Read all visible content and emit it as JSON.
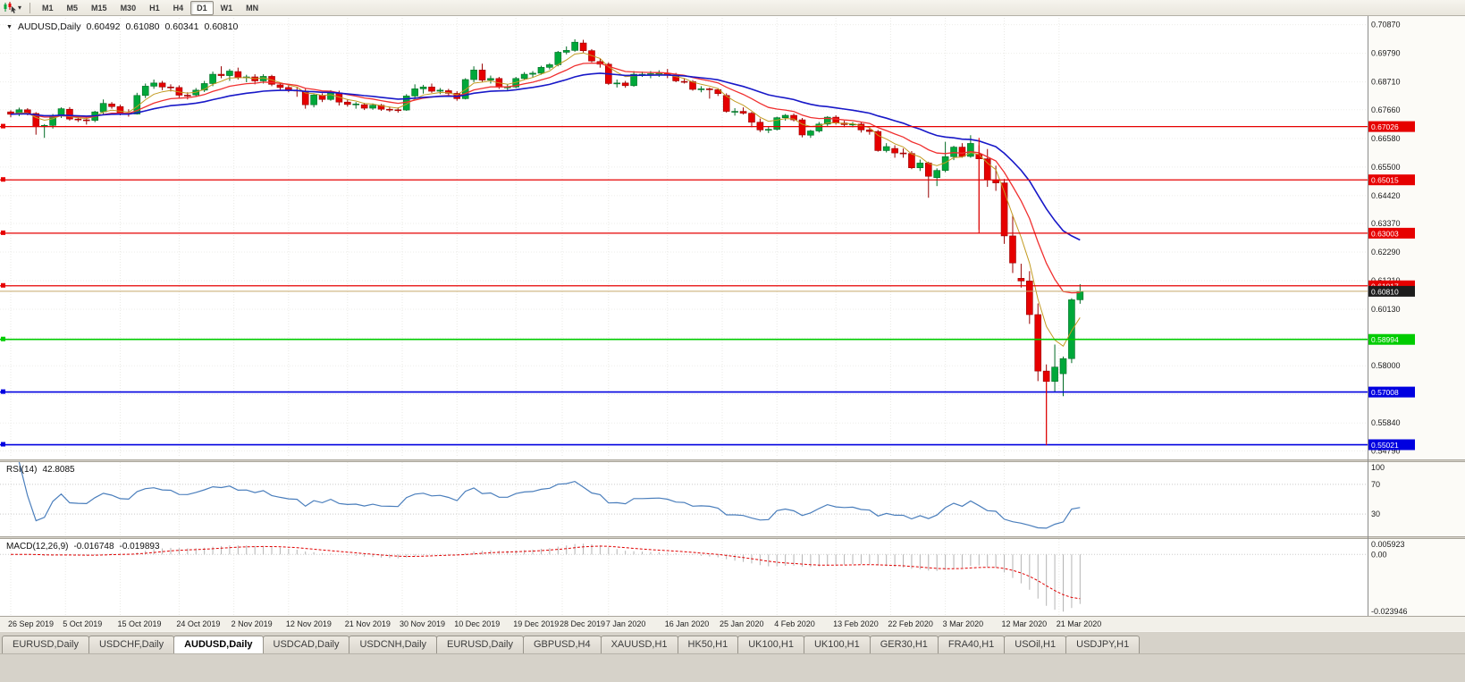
{
  "toolbar": {
    "timeframes": [
      "M1",
      "M5",
      "M15",
      "M30",
      "H1",
      "H4",
      "D1",
      "W1",
      "MN"
    ],
    "active_timeframe": "D1"
  },
  "symbol": {
    "expand_icon": "▼",
    "name": "AUDUSD,Daily",
    "open": "0.60492",
    "high": "0.61080",
    "low": "0.60341",
    "close": "0.60810"
  },
  "indicators": {
    "rsi": {
      "label": "RSI(14)",
      "value": "42.8085"
    },
    "macd": {
      "label": "MACD(12,26,9)",
      "value": "-0.016748",
      "signal": "-0.019893"
    }
  },
  "tabs": {
    "items": [
      "EURUSD,Daily",
      "USDCHF,Daily",
      "AUDUSD,Daily",
      "USDCAD,Daily",
      "USDCNH,Daily",
      "EURUSD,Daily",
      "GBPUSD,H4",
      "XAUUSD,H1",
      "HK50,H1",
      "UK100,H1",
      "UK100,H1",
      "GER30,H1",
      "FRA40,H1",
      "USOil,H1",
      "USDJPY,H1"
    ],
    "active_index": 2
  },
  "chart_data": {
    "type": "candlestick",
    "symbol": "AUDUSD",
    "timeframe": "Daily",
    "current_bar": {
      "open": 0.60492,
      "high": 0.6108,
      "low": 0.60341,
      "close": 0.6081
    },
    "ylim": [
      0.546,
      0.7106
    ],
    "y_ticks": [
      "0.70870",
      "0.69790",
      "0.68710",
      "0.67660",
      "0.66580",
      "0.65500",
      "0.64420",
      "0.63370",
      "0.62290",
      "0.61210",
      "0.60130",
      "0.59050",
      "0.58000",
      "0.56920",
      "0.55840",
      "0.54790"
    ],
    "x_ticks": [
      {
        "label": "26 Sep 2019",
        "index": 0
      },
      {
        "label": "5 Oct 2019",
        "index": 6.5
      },
      {
        "label": "15 Oct 2019",
        "index": 13
      },
      {
        "label": "24 Oct 2019",
        "index": 20
      },
      {
        "label": "2 Nov 2019",
        "index": 26.5
      },
      {
        "label": "12 Nov 2019",
        "index": 33
      },
      {
        "label": "21 Nov 2019",
        "index": 40
      },
      {
        "label": "30 Nov 2019",
        "index": 46.5
      },
      {
        "label": "10 Dec 2019",
        "index": 53
      },
      {
        "label": "19 Dec 2019",
        "index": 60
      },
      {
        "label": "28 Dec 2019",
        "index": 65.5
      },
      {
        "label": "7 Jan 2020",
        "index": 71
      },
      {
        "label": "16 Jan 2020",
        "index": 78
      },
      {
        "label": "25 Jan 2020",
        "index": 84.5
      },
      {
        "label": "4 Feb 2020",
        "index": 91
      },
      {
        "label": "13 Feb 2020",
        "index": 98
      },
      {
        "label": "22 Feb 2020",
        "index": 104.5
      },
      {
        "label": "3 Mar 2020",
        "index": 111
      },
      {
        "label": "12 Mar 2020",
        "index": 118
      },
      {
        "label": "21 Mar 2020",
        "index": 124.5
      }
    ],
    "colors": {
      "up_fill": "#00a83a",
      "up_border": "#006b24",
      "down_fill": "#e60000",
      "down_border": "#970000"
    },
    "moving_averages": [
      {
        "period": 5,
        "color": "#c39b22",
        "width": 1
      },
      {
        "period": 12,
        "color": "#f03030",
        "width": 1.3
      },
      {
        "period": 26,
        "color": "#1818c8",
        "width": 1.6
      }
    ],
    "horizontal_lines": [
      {
        "price": 0.67026,
        "color": "#e60000",
        "width": 1.2,
        "tag": "0.67026"
      },
      {
        "price": 0.65015,
        "color": "#e60000",
        "width": 1.2,
        "tag": "0.65015"
      },
      {
        "price": 0.63003,
        "color": "#e60000",
        "width": 1.2,
        "tag": "0.63003"
      },
      {
        "price": 0.61017,
        "color": "#e60000",
        "width": 1.2,
        "tag": "0.61017"
      },
      {
        "price": 0.58994,
        "color": "#00cc00",
        "width": 1.6,
        "tag": "0.58994"
      },
      {
        "price": 0.57008,
        "color": "#0000e0",
        "width": 1.6,
        "tag": "0.57008"
      },
      {
        "price": 0.55021,
        "color": "#0000e0",
        "width": 1.6,
        "tag": "0.55021"
      }
    ],
    "current_price_line": {
      "price": 0.6081,
      "tag": "0.60810",
      "line_color": "#c8a96a",
      "tag_color": "#1c1c1c"
    },
    "vertical_segments": [
      {
        "index": 115,
        "from": 0.666,
        "to": 0.63,
        "color": "#e60000"
      },
      {
        "index": 123,
        "from": 0.577,
        "to": 0.55,
        "color": "#e60000"
      }
    ],
    "rsi": {
      "period": 14,
      "last": 42.8085,
      "levels": [
        70,
        30
      ],
      "axis_labels": [
        "100",
        "70",
        "30"
      ],
      "ylim": [
        0,
        100
      ],
      "color": "#4a7ebc"
    },
    "macd": {
      "fast": 12,
      "slow": 26,
      "signal": 9,
      "last_main": -0.016748,
      "last_signal": -0.019893,
      "axis_labels": [
        "0.005923",
        "0.00",
        "-0.023946"
      ],
      "ylim": [
        -0.0246,
        0.0062
      ],
      "hist_color": "#b4b4b4",
      "signal_color": "#e00000"
    },
    "ohlc": [
      [
        "2019-09-26",
        0.6758,
        0.6764,
        0.6738,
        0.6749
      ],
      [
        "2019-09-27",
        0.6749,
        0.6774,
        0.6742,
        0.6766
      ],
      [
        "2019-09-30",
        0.6766,
        0.6772,
        0.6745,
        0.6752
      ],
      [
        "2019-10-01",
        0.6752,
        0.6757,
        0.6672,
        0.6702
      ],
      [
        "2019-10-02",
        0.6702,
        0.6712,
        0.666,
        0.6707
      ],
      [
        "2019-10-03",
        0.6707,
        0.675,
        0.6695,
        0.6742
      ],
      [
        "2019-10-04",
        0.6742,
        0.6775,
        0.6735,
        0.677
      ],
      [
        "2019-10-07",
        0.6768,
        0.6776,
        0.6725,
        0.6731
      ],
      [
        "2019-10-08",
        0.6731,
        0.6745,
        0.672,
        0.6728
      ],
      [
        "2019-10-09",
        0.6728,
        0.6736,
        0.671,
        0.6726
      ],
      [
        "2019-10-10",
        0.6726,
        0.6762,
        0.6719,
        0.6758
      ],
      [
        "2019-10-11",
        0.6758,
        0.6805,
        0.675,
        0.679
      ],
      [
        "2019-10-14",
        0.6788,
        0.6795,
        0.677,
        0.6778
      ],
      [
        "2019-10-15",
        0.6778,
        0.6785,
        0.6745,
        0.6753
      ],
      [
        "2019-10-16",
        0.6753,
        0.6768,
        0.674,
        0.675
      ],
      [
        "2019-10-17",
        0.675,
        0.683,
        0.6748,
        0.682
      ],
      [
        "2019-10-18",
        0.682,
        0.6865,
        0.681,
        0.6855
      ],
      [
        "2019-10-21",
        0.6855,
        0.688,
        0.6845,
        0.6867
      ],
      [
        "2019-10-22",
        0.6867,
        0.6875,
        0.684,
        0.6852
      ],
      [
        "2019-10-23",
        0.6852,
        0.6862,
        0.6835,
        0.685
      ],
      [
        "2019-10-24",
        0.685,
        0.6858,
        0.681,
        0.6821
      ],
      [
        "2019-10-25",
        0.6821,
        0.6832,
        0.6805,
        0.682
      ],
      [
        "2019-10-28",
        0.6822,
        0.6848,
        0.6815,
        0.684
      ],
      [
        "2019-10-29",
        0.684,
        0.6875,
        0.6833,
        0.6865
      ],
      [
        "2019-10-30",
        0.6865,
        0.691,
        0.6855,
        0.69
      ],
      [
        "2019-10-31",
        0.69,
        0.693,
        0.6885,
        0.6895
      ],
      [
        "2019-11-01",
        0.6895,
        0.692,
        0.6875,
        0.6912
      ],
      [
        "2019-11-04",
        0.691,
        0.6925,
        0.688,
        0.6888
      ],
      [
        "2019-11-05",
        0.6888,
        0.6898,
        0.687,
        0.689
      ],
      [
        "2019-11-06",
        0.689,
        0.69,
        0.6862,
        0.6875
      ],
      [
        "2019-11-07",
        0.6875,
        0.69,
        0.6865,
        0.6892
      ],
      [
        "2019-11-08",
        0.6892,
        0.6898,
        0.6855,
        0.6862
      ],
      [
        "2019-11-11",
        0.686,
        0.687,
        0.684,
        0.685
      ],
      [
        "2019-11-12",
        0.685,
        0.686,
        0.6832,
        0.684
      ],
      [
        "2019-11-13",
        0.684,
        0.6852,
        0.6815,
        0.6837
      ],
      [
        "2019-11-14",
        0.6837,
        0.6845,
        0.677,
        0.6785
      ],
      [
        "2019-11-15",
        0.6785,
        0.6825,
        0.6775,
        0.6822
      ],
      [
        "2019-11-18",
        0.682,
        0.6828,
        0.6795,
        0.6805
      ],
      [
        "2019-11-19",
        0.6805,
        0.684,
        0.68,
        0.683
      ],
      [
        "2019-11-20",
        0.683,
        0.6838,
        0.6782,
        0.6795
      ],
      [
        "2019-11-21",
        0.6795,
        0.6805,
        0.6778,
        0.6786
      ],
      [
        "2019-11-22",
        0.6786,
        0.6795,
        0.677,
        0.6788
      ],
      [
        "2019-11-25",
        0.6785,
        0.6792,
        0.6765,
        0.6772
      ],
      [
        "2019-11-26",
        0.6772,
        0.679,
        0.6766,
        0.6783
      ],
      [
        "2019-11-27",
        0.6783,
        0.6788,
        0.6762,
        0.6768
      ],
      [
        "2019-11-28",
        0.6768,
        0.6778,
        0.6758,
        0.6766
      ],
      [
        "2019-11-29",
        0.6766,
        0.6775,
        0.6755,
        0.6764
      ],
      [
        "2019-12-02",
        0.6765,
        0.6825,
        0.6762,
        0.6818
      ],
      [
        "2019-12-03",
        0.6818,
        0.6862,
        0.681,
        0.6845
      ],
      [
        "2019-12-04",
        0.6845,
        0.686,
        0.6827,
        0.6852
      ],
      [
        "2019-12-05",
        0.6852,
        0.6865,
        0.683,
        0.6836
      ],
      [
        "2019-12-06",
        0.6836,
        0.6848,
        0.6825,
        0.684
      ],
      [
        "2019-12-09",
        0.6838,
        0.6845,
        0.682,
        0.6828
      ],
      [
        "2019-12-10",
        0.6828,
        0.6836,
        0.68,
        0.6808
      ],
      [
        "2019-12-11",
        0.6808,
        0.6885,
        0.6805,
        0.688
      ],
      [
        "2019-12-12",
        0.688,
        0.693,
        0.687,
        0.6916
      ],
      [
        "2019-12-13",
        0.6916,
        0.694,
        0.687,
        0.6878
      ],
      [
        "2019-12-16",
        0.6878,
        0.6895,
        0.6865,
        0.6884
      ],
      [
        "2019-12-17",
        0.6884,
        0.689,
        0.6845,
        0.6852
      ],
      [
        "2019-12-18",
        0.6852,
        0.6862,
        0.6838,
        0.6852
      ],
      [
        "2019-12-19",
        0.6852,
        0.689,
        0.6848,
        0.6884
      ],
      [
        "2019-12-20",
        0.6884,
        0.6908,
        0.6878,
        0.69
      ],
      [
        "2019-12-23",
        0.69,
        0.6912,
        0.6888,
        0.6904
      ],
      [
        "2019-12-24",
        0.6904,
        0.6932,
        0.6898,
        0.6926
      ],
      [
        "2019-12-26",
        0.6926,
        0.6942,
        0.6918,
        0.6936
      ],
      [
        "2019-12-27",
        0.6936,
        0.6988,
        0.693,
        0.6983
      ],
      [
        "2019-12-30",
        0.6983,
        0.7005,
        0.6975,
        0.699
      ],
      [
        "2019-12-31",
        0.699,
        0.7032,
        0.6985,
        0.7021
      ],
      [
        "2020-01-02",
        0.7018,
        0.703,
        0.6982,
        0.6989
      ],
      [
        "2020-01-03",
        0.6989,
        0.6995,
        0.6945,
        0.695
      ],
      [
        "2020-01-06",
        0.6948,
        0.696,
        0.6925,
        0.6938
      ],
      [
        "2020-01-07",
        0.6938,
        0.6945,
        0.686,
        0.6865
      ],
      [
        "2020-01-08",
        0.6865,
        0.688,
        0.685,
        0.6867
      ],
      [
        "2020-01-09",
        0.6867,
        0.6875,
        0.6849,
        0.6857
      ],
      [
        "2020-01-10",
        0.6857,
        0.6912,
        0.6853,
        0.69
      ],
      [
        "2020-01-13",
        0.6898,
        0.691,
        0.689,
        0.69
      ],
      [
        "2020-01-14",
        0.69,
        0.6912,
        0.6885,
        0.6902
      ],
      [
        "2020-01-15",
        0.6902,
        0.6915,
        0.689,
        0.6904
      ],
      [
        "2020-01-16",
        0.6904,
        0.692,
        0.6885,
        0.6896
      ],
      [
        "2020-01-17",
        0.6896,
        0.6905,
        0.687,
        0.6875
      ],
      [
        "2020-01-20",
        0.6873,
        0.6885,
        0.6865,
        0.6872
      ],
      [
        "2020-01-21",
        0.6872,
        0.6878,
        0.6838,
        0.6843
      ],
      [
        "2020-01-22",
        0.6843,
        0.6855,
        0.6832,
        0.6845
      ],
      [
        "2020-01-23",
        0.6845,
        0.685,
        0.6808,
        0.6842
      ],
      [
        "2020-01-24",
        0.6842,
        0.6848,
        0.6818,
        0.6827
      ],
      [
        "2020-01-27",
        0.682,
        0.6828,
        0.6755,
        0.676
      ],
      [
        "2020-01-28",
        0.676,
        0.6772,
        0.6744,
        0.676
      ],
      [
        "2020-01-29",
        0.676,
        0.6775,
        0.6748,
        0.6753
      ],
      [
        "2020-01-30",
        0.6753,
        0.6758,
        0.67,
        0.6719
      ],
      [
        "2020-01-31",
        0.6719,
        0.6733,
        0.6682,
        0.669
      ],
      [
        "2020-02-03",
        0.669,
        0.6702,
        0.6678,
        0.6692
      ],
      [
        "2020-02-04",
        0.6692,
        0.674,
        0.6688,
        0.6736
      ],
      [
        "2020-02-05",
        0.6736,
        0.675,
        0.6725,
        0.6745
      ],
      [
        "2020-02-06",
        0.6745,
        0.6752,
        0.6722,
        0.6728
      ],
      [
        "2020-02-07",
        0.6728,
        0.6735,
        0.6662,
        0.6671
      ],
      [
        "2020-02-10",
        0.667,
        0.669,
        0.666,
        0.6686
      ],
      [
        "2020-02-11",
        0.6686,
        0.672,
        0.668,
        0.6712
      ],
      [
        "2020-02-12",
        0.6712,
        0.6742,
        0.6705,
        0.6738
      ],
      [
        "2020-02-13",
        0.6738,
        0.6745,
        0.671,
        0.6716
      ],
      [
        "2020-02-14",
        0.6716,
        0.6725,
        0.67,
        0.671
      ],
      [
        "2020-02-17",
        0.671,
        0.672,
        0.67,
        0.6712
      ],
      [
        "2020-02-18",
        0.6712,
        0.6718,
        0.668,
        0.669
      ],
      [
        "2020-02-19",
        0.669,
        0.67,
        0.6672,
        0.6684
      ],
      [
        "2020-02-20",
        0.6684,
        0.669,
        0.6608,
        0.6612
      ],
      [
        "2020-02-21",
        0.6612,
        0.664,
        0.6605,
        0.6627
      ],
      [
        "2020-02-24",
        0.662,
        0.6632,
        0.6585,
        0.6603
      ],
      [
        "2020-02-25",
        0.6603,
        0.662,
        0.6585,
        0.6601
      ],
      [
        "2020-02-26",
        0.6601,
        0.661,
        0.6542,
        0.6547
      ],
      [
        "2020-02-27",
        0.6547,
        0.6578,
        0.6535,
        0.6565
      ],
      [
        "2020-02-28",
        0.6565,
        0.657,
        0.6434,
        0.6515
      ],
      [
        "2020-03-02",
        0.651,
        0.6545,
        0.6478,
        0.6537
      ],
      [
        "2020-03-03",
        0.6537,
        0.6645,
        0.653,
        0.6589
      ],
      [
        "2020-03-04",
        0.6589,
        0.663,
        0.6576,
        0.6625
      ],
      [
        "2020-03-05",
        0.6625,
        0.664,
        0.6585,
        0.659
      ],
      [
        "2020-03-06",
        0.659,
        0.667,
        0.6585,
        0.6639
      ],
      [
        "2020-03-09",
        0.6598,
        0.6632,
        0.6313,
        0.6581
      ],
      [
        "2020-03-10",
        0.6581,
        0.6618,
        0.6475,
        0.6502
      ],
      [
        "2020-03-11",
        0.6502,
        0.6555,
        0.646,
        0.649
      ],
      [
        "2020-03-12",
        0.649,
        0.6505,
        0.626,
        0.629
      ],
      [
        "2020-03-13",
        0.629,
        0.637,
        0.615,
        0.6188
      ],
      [
        "2020-03-16",
        0.613,
        0.6185,
        0.6095,
        0.612
      ],
      [
        "2020-03-17",
        0.612,
        0.6157,
        0.5958,
        0.5993
      ],
      [
        "2020-03-18",
        0.5993,
        0.6035,
        0.5742,
        0.578
      ],
      [
        "2020-03-19",
        0.578,
        0.5805,
        0.551,
        0.5741
      ],
      [
        "2020-03-20",
        0.5741,
        0.588,
        0.57,
        0.5795
      ],
      [
        "2020-03-23",
        0.577,
        0.5835,
        0.5685,
        0.5827
      ],
      [
        "2020-03-24",
        0.5827,
        0.6055,
        0.581,
        0.6049
      ],
      [
        "2020-03-25",
        0.6049,
        0.6108,
        0.6034,
        0.6081
      ]
    ]
  }
}
